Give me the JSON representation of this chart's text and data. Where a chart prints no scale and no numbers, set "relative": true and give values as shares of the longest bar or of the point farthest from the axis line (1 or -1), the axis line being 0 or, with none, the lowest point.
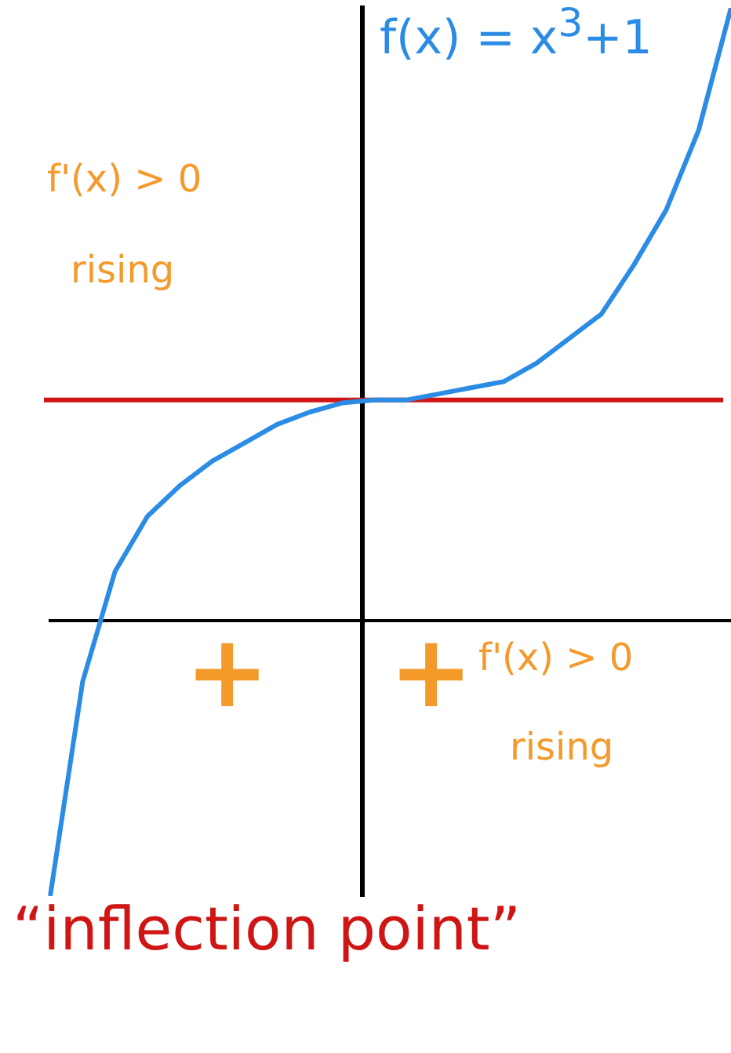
{
  "chart_data": {
    "type": "line",
    "relative": true,
    "grid": false,
    "legend": false,
    "categories": [
      null,
      null,
      null,
      null,
      null,
      null,
      null,
      null,
      null,
      null,
      null,
      null,
      null,
      null,
      null,
      null,
      null,
      null,
      null,
      null,
      null,
      null
    ],
    "series": [
      {
        "color": "#2b8ce6",
        "marker": "none",
        "values": [
          -0.45,
          -0.1,
          0.08,
          0.17,
          0.22,
          0.26,
          0.29,
          0.32,
          0.34,
          0.355,
          0.36,
          0.36,
          0.37,
          0.38,
          0.39,
          0.42,
          0.46,
          0.5,
          0.58,
          0.67,
          0.8,
          1
        ]
      }
    ],
    "ref_lines": [
      {
        "axis": "y",
        "value": 0.36,
        "color": "#d01515"
      }
    ],
    "annotations": [
      "f(x) = x$^{3}$+1",
      "f'(x) > 0",
      "rising",
      "+",
      "+",
      "f'(x) > 0",
      "rising",
      "“inflection point”"
    ]
  }
}
